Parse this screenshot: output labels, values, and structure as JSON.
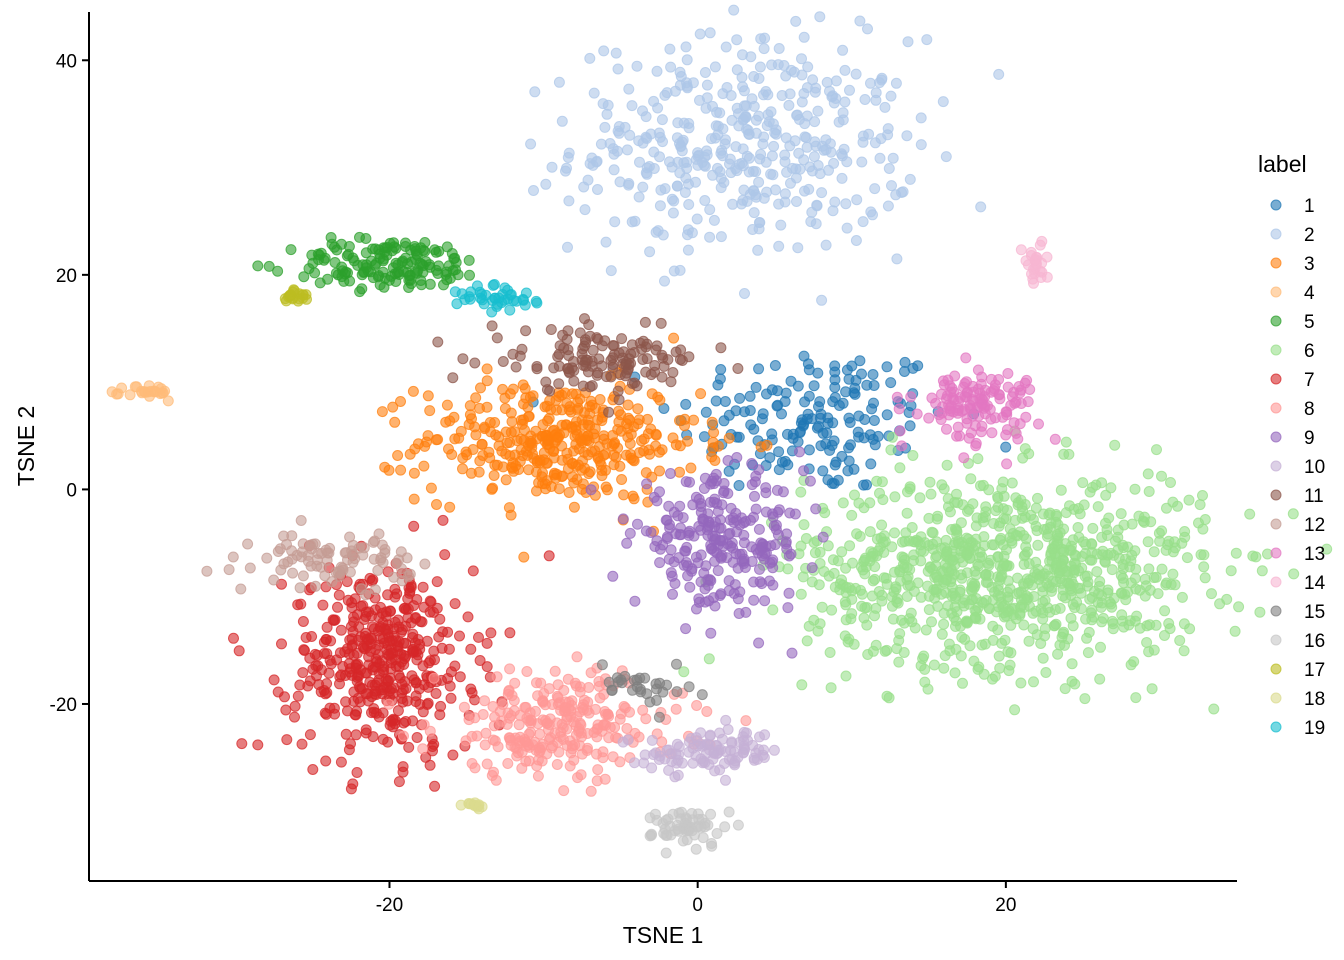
{
  "chart_data": {
    "type": "scatter",
    "title": "",
    "xlabel": "TSNE 1",
    "ylabel": "TSNE 2",
    "xlim": [
      -39.5,
      35
    ],
    "ylim": [
      -36.5,
      44.5
    ],
    "xticks": [
      -20,
      0,
      20
    ],
    "yticks": [
      -20,
      0,
      20,
      40
    ],
    "grid": false,
    "legend": {
      "title": "label",
      "position": "right"
    },
    "series": [
      {
        "name": "1",
        "color": "#1f77b4",
        "center": [
          7.5,
          6.5
        ],
        "spread": [
          4.5,
          3.5
        ],
        "n": 170
      },
      {
        "name": "2",
        "color": "#aec7e8",
        "center": [
          3.0,
          32.0
        ],
        "spread": [
          5.5,
          5.0
        ],
        "n": 420
      },
      {
        "name": "3",
        "color": "#ff7f0e",
        "center": [
          -9.0,
          4.5
        ],
        "spread": [
          4.5,
          2.8
        ],
        "n": 380
      },
      {
        "name": "4",
        "color": "#ffbb78",
        "center": [
          -35.5,
          9.0
        ],
        "spread": [
          0.8,
          0.4
        ],
        "n": 25
      },
      {
        "name": "5",
        "color": "#2ca02c",
        "center": [
          -20.0,
          21.0
        ],
        "spread": [
          3.2,
          1.2
        ],
        "n": 150
      },
      {
        "name": "6",
        "color": "#98df8a",
        "center": [
          20.0,
          -7.5
        ],
        "spread": [
          6.5,
          4.5
        ],
        "n": 900
      },
      {
        "name": "7",
        "color": "#d62728",
        "center": [
          -20.5,
          -16.0
        ],
        "spread": [
          3.0,
          4.5
        ],
        "n": 430
      },
      {
        "name": "8",
        "color": "#ff9896",
        "center": [
          -9.0,
          -22.0
        ],
        "spread": [
          4.0,
          2.5
        ],
        "n": 260
      },
      {
        "name": "9",
        "color": "#9467bd",
        "center": [
          1.5,
          -5.0
        ],
        "spread": [
          2.8,
          3.0
        ],
        "n": 250
      },
      {
        "name": "10",
        "color": "#c5b0d5",
        "center": [
          1.0,
          -24.5
        ],
        "spread": [
          2.2,
          1.0
        ],
        "n": 100
      },
      {
        "name": "11",
        "color": "#8c564b",
        "center": [
          -6.5,
          12.0
        ],
        "spread": [
          3.5,
          1.4
        ],
        "n": 130
      },
      {
        "name": "12",
        "color": "#c49c94",
        "center": [
          -23.5,
          -6.5
        ],
        "spread": [
          2.5,
          1.2
        ],
        "n": 90
      },
      {
        "name": "13",
        "color": "#e377c2",
        "center": [
          18.0,
          8.0
        ],
        "spread": [
          2.0,
          1.6
        ],
        "n": 130
      },
      {
        "name": "14",
        "color": "#f7b6d2",
        "center": [
          21.8,
          21.0
        ],
        "spread": [
          0.5,
          1.1
        ],
        "n": 25
      },
      {
        "name": "15",
        "color": "#7f7f7f",
        "center": [
          -3.5,
          -18.0
        ],
        "spread": [
          1.5,
          1.0
        ],
        "n": 30
      },
      {
        "name": "16",
        "color": "#c7c7c7",
        "center": [
          -0.5,
          -31.5
        ],
        "spread": [
          1.2,
          0.9
        ],
        "n": 60
      },
      {
        "name": "17",
        "color": "#bcbd22",
        "center": [
          -26.2,
          18.0
        ],
        "spread": [
          0.4,
          0.25
        ],
        "n": 20
      },
      {
        "name": "18",
        "color": "#dbdb8d",
        "center": [
          -14.5,
          -29.5
        ],
        "spread": [
          0.35,
          0.3
        ],
        "n": 12
      },
      {
        "name": "19",
        "color": "#17becf",
        "center": [
          -12.8,
          17.8
        ],
        "spread": [
          1.4,
          0.7
        ],
        "n": 40
      }
    ]
  }
}
